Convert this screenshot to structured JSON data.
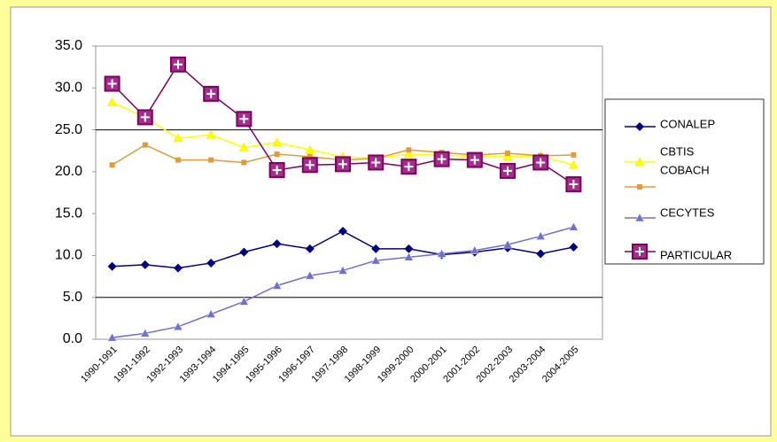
{
  "chart_data": {
    "type": "line",
    "categories": [
      "1990-1991",
      "1991-1992",
      "1992-1993",
      "1993-1994",
      "1994-1995",
      "1995-1996",
      "1996-1997",
      "1997-1998",
      "1998-1999",
      "1999-2000",
      "2000-2001",
      "2001-2002",
      "2002-2003",
      "2003-2004",
      "2004-2005"
    ],
    "series": [
      {
        "name": "CONALEP",
        "color": "#000080",
        "marker": "diamond",
        "values": [
          8.7,
          8.9,
          8.5,
          9.1,
          10.4,
          11.4,
          10.8,
          12.9,
          10.8,
          10.8,
          10.1,
          10.4,
          10.9,
          10.2,
          11.0
        ]
      },
      {
        "name": "CBTIS",
        "color": "#ffff00",
        "marker": "triangle",
        "values": [
          28.3,
          26.5,
          24.0,
          24.4,
          22.9,
          23.5,
          22.6,
          21.8,
          21.6,
          22.1,
          22.0,
          21.8,
          21.8,
          21.9,
          20.8
        ]
      },
      {
        "name": "COBACH",
        "color": "#e39b3a",
        "marker": "square",
        "values": [
          20.8,
          23.2,
          21.4,
          21.4,
          21.1,
          22.1,
          21.8,
          21.4,
          21.6,
          22.6,
          22.3,
          22.0,
          22.2,
          21.9,
          22.0
        ]
      },
      {
        "name": "CECYTES",
        "color": "#7070d0",
        "marker": "triangle",
        "values": [
          0.2,
          0.7,
          1.5,
          3.0,
          4.5,
          6.4,
          7.6,
          8.2,
          9.4,
          9.8,
          10.2,
          10.6,
          11.3,
          12.3,
          13.4
        ]
      },
      {
        "name": "PARTICULAR",
        "color": "#800060",
        "marker": "crossbox",
        "values": [
          30.5,
          26.5,
          32.8,
          29.3,
          26.3,
          20.2,
          20.8,
          20.9,
          21.1,
          20.6,
          21.5,
          21.4,
          20.1,
          21.1,
          18.5
        ]
      }
    ],
    "ylim": [
      0,
      35
    ],
    "yticks": [
      {
        "value": 0,
        "label": "0.0"
      },
      {
        "value": 5,
        "label": "5.0"
      },
      {
        "value": 10,
        "label": "10.0"
      },
      {
        "value": 15,
        "label": "15.0"
      },
      {
        "value": 20,
        "label": "20.0"
      },
      {
        "value": 25,
        "label": "25.0"
      },
      {
        "value": 30,
        "label": "30.0"
      },
      {
        "value": 35,
        "label": "35.0"
      }
    ],
    "gridlines": [
      5,
      25
    ],
    "legend": "right"
  }
}
